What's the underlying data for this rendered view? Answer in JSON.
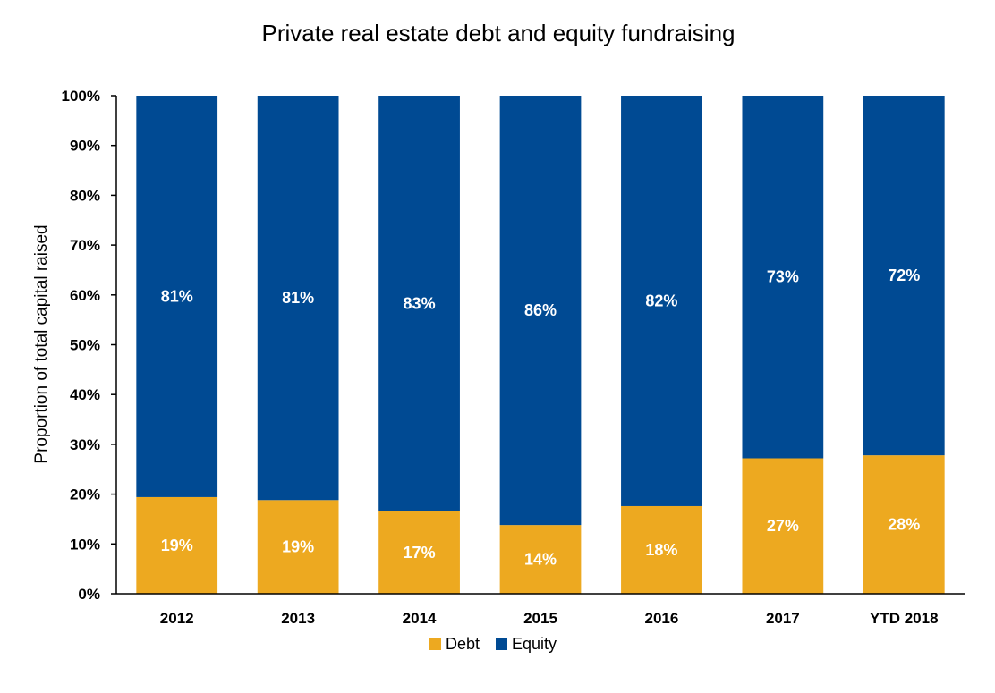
{
  "chart_data": {
    "type": "bar",
    "stacked": true,
    "title": "Private real estate debt and equity fundraising",
    "xlabel": "",
    "ylabel": "Proportion of total capital raised",
    "ylim": [
      0,
      100
    ],
    "y_ticks": [
      "0%",
      "10%",
      "20%",
      "30%",
      "40%",
      "50%",
      "60%",
      "70%",
      "80%",
      "90%",
      "100%"
    ],
    "categories": [
      "2012",
      "2013",
      "2014",
      "2015",
      "2016",
      "2017",
      "YTD 2018"
    ],
    "series": [
      {
        "name": "Debt",
        "color": "#EDA920",
        "values": [
          19.4,
          18.8,
          16.6,
          13.8,
          17.6,
          27.2,
          27.8
        ],
        "labels": [
          "19%",
          "19%",
          "17%",
          "14%",
          "18%",
          "27%",
          "28%"
        ]
      },
      {
        "name": "Equity",
        "color": "#004A93",
        "values": [
          80.6,
          81.2,
          83.4,
          86.2,
          82.4,
          72.8,
          72.2
        ],
        "labels": [
          "81%",
          "81%",
          "83%",
          "86%",
          "82%",
          "73%",
          "72%"
        ]
      }
    ],
    "grid": false,
    "legend_position": "bottom"
  }
}
